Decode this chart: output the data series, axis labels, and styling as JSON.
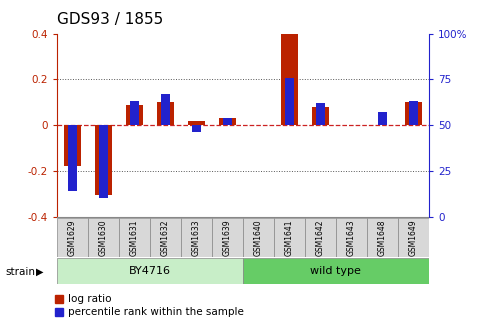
{
  "title": "GDS93 / 1855",
  "samples": [
    "GSM1629",
    "GSM1630",
    "GSM1631",
    "GSM1632",
    "GSM1633",
    "GSM1639",
    "GSM1640",
    "GSM1641",
    "GSM1642",
    "GSM1643",
    "GSM1648",
    "GSM1649"
  ],
  "log_ratio": [
    -0.18,
    -0.305,
    0.09,
    0.1,
    0.02,
    0.03,
    0.0,
    0.4,
    0.08,
    0.0,
    0.0,
    0.1
  ],
  "percentile_rank": [
    14,
    10,
    63,
    67,
    46,
    54,
    50,
    76,
    62,
    50,
    57,
    63
  ],
  "strain_groups": [
    {
      "label": "BY4716",
      "start": 0,
      "end": 6,
      "color": "#c8eec8"
    },
    {
      "label": "wild type",
      "start": 6,
      "end": 12,
      "color": "#66cc66"
    }
  ],
  "ylim_left": [
    -0.4,
    0.4
  ],
  "ylim_right": [
    0,
    100
  ],
  "yticks_left": [
    -0.4,
    -0.2,
    0.0,
    0.2,
    0.4
  ],
  "yticks_right": [
    0,
    25,
    50,
    75,
    100
  ],
  "bar_width": 0.55,
  "log_ratio_color": "#bb2200",
  "percentile_color": "#2222cc",
  "zero_line_color": "#cc2222",
  "dotted_line_color": "#555555",
  "bg_color": "#ffffff",
  "strain_label": "strain",
  "legend_log_ratio": "log ratio",
  "legend_percentile": "percentile rank within the sample",
  "title_fontsize": 11,
  "tick_fontsize": 7.5,
  "legend_fontsize": 7.5
}
